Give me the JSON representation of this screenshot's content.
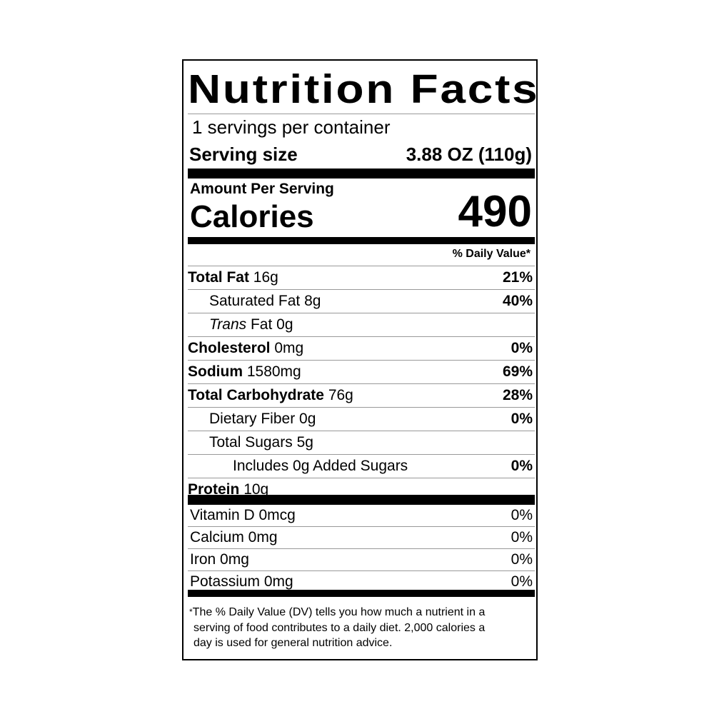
{
  "title": "Nutrition Facts",
  "servings_per_container": "1 servings per container",
  "serving_size_label": "Serving size",
  "serving_size_value": "3.88 OZ (110g)",
  "amount_per_serving": "Amount Per Serving",
  "calories_label": "Calories",
  "calories_value": "490",
  "daily_value_header": "% Daily Value*",
  "nutrients": [
    {
      "name": "Total Fat",
      "amount": "16g",
      "dv": "21%"
    },
    {
      "name": "Saturated Fat",
      "amount": "8g",
      "dv": "40%"
    },
    {
      "name": "Trans",
      "name_suffix": "Fat",
      "amount": "0g",
      "dv": ""
    },
    {
      "name": "Cholesterol",
      "amount": "0mg",
      "dv": "0%"
    },
    {
      "name": "Sodium",
      "amount": "1580mg",
      "dv": "69%"
    },
    {
      "name": "Total Carbohydrate",
      "amount": "76g",
      "dv": "28%"
    },
    {
      "name": "Dietary Fiber",
      "amount": "0g",
      "dv": "0%"
    },
    {
      "name": "Total Sugars",
      "amount": "5g",
      "dv": ""
    },
    {
      "name": "Includes 0g Added Sugars",
      "amount": "",
      "dv": "0%"
    },
    {
      "name": "Protein",
      "amount": "10g",
      "dv": ""
    }
  ],
  "vitamins": [
    {
      "name": "Vitamin D 0mcg",
      "dv": "0%"
    },
    {
      "name": "Calcium 0mg",
      "dv": "0%"
    },
    {
      "name": "Iron 0mg",
      "dv": "0%"
    },
    {
      "name": "Potassium 0mg",
      "dv": "0%"
    }
  ],
  "footnote_star": "*",
  "footnote_lines": [
    "The % Daily Value (DV) tells you how much a nutrient in a",
    "serving of food contributes to a daily diet. 2,000 calories a",
    "day is used for general nutrition advice."
  ]
}
